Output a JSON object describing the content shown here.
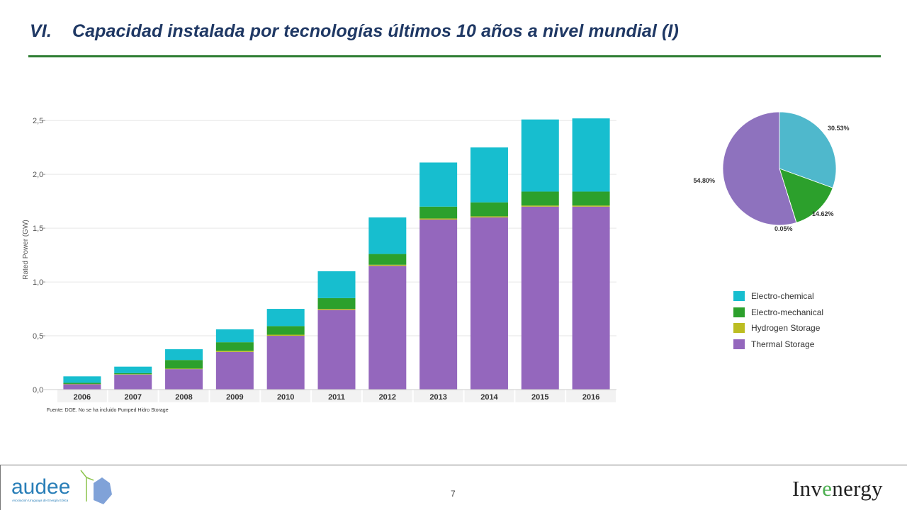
{
  "slide": {
    "number": "VI.",
    "title": "Capacidad instalada por tecnologías últimos 10 años a nivel mundial (I)",
    "source": "Fuente: DOE. No se ha incluido Pumped Hidro Storage",
    "page_number": "7"
  },
  "logos": {
    "left_main": "audee",
    "left_sub": "Asociación Uruguaya de Energía Eólica",
    "right_prefix": "Inv",
    "right_accent": "e",
    "right_suffix": "nergy"
  },
  "colors": {
    "electro_chemical": "#17becf",
    "electro_mechanical": "#2ca02c",
    "hydrogen_storage": "#bcbd22",
    "thermal_storage": "#9467bd",
    "title": "#1f3864",
    "rule": "#2e7d32"
  },
  "chart_data": [
    {
      "type": "bar",
      "stacked": true,
      "ylabel": "Rated Power (GW)",
      "ylim": [
        0,
        2.6
      ],
      "yticks": [
        0.0,
        0.5,
        1.0,
        1.5,
        2.0,
        2.5
      ],
      "ytick_labels": [
        "0,0",
        "0,5",
        "1,0",
        "1,5",
        "2,0",
        "2,5"
      ],
      "categories": [
        "2006",
        "2007",
        "2008",
        "2009",
        "2010",
        "2011",
        "2012",
        "2013",
        "2014",
        "2015",
        "2016"
      ],
      "series": [
        {
          "name": "Thermal Storage",
          "values": [
            0.05,
            0.14,
            0.19,
            0.35,
            0.5,
            0.74,
            1.15,
            1.58,
            1.6,
            1.7,
            1.7
          ]
        },
        {
          "name": "Hydrogen Storage",
          "values": [
            0.003,
            0.003,
            0.005,
            0.01,
            0.01,
            0.01,
            0.01,
            0.01,
            0.01,
            0.01,
            0.01
          ]
        },
        {
          "name": "Electro-mechanical",
          "values": [
            0.01,
            0.01,
            0.08,
            0.08,
            0.08,
            0.1,
            0.1,
            0.11,
            0.13,
            0.13,
            0.13
          ]
        },
        {
          "name": "Electro-chemical",
          "values": [
            0.06,
            0.06,
            0.1,
            0.12,
            0.16,
            0.25,
            0.34,
            0.41,
            0.51,
            0.67,
            0.68
          ]
        }
      ]
    },
    {
      "type": "pie",
      "slices": [
        {
          "name": "Electro-chemical",
          "value": 30.53,
          "label": "30.53%"
        },
        {
          "name": "Electro-mechanical",
          "value": 14.62,
          "label": "14.62%"
        },
        {
          "name": "Hydrogen Storage",
          "value": 0.05,
          "label": "0.05%"
        },
        {
          "name": "Thermal Storage",
          "value": 54.8,
          "label": "54.80%"
        }
      ]
    }
  ],
  "legend": {
    "items": [
      {
        "label": "Electro-chemical",
        "color": "#17becf"
      },
      {
        "label": "Electro-mechanical",
        "color": "#2ca02c"
      },
      {
        "label": "Hydrogen Storage",
        "color": "#bcbd22"
      },
      {
        "label": "Thermal Storage",
        "color": "#9467bd"
      }
    ]
  }
}
